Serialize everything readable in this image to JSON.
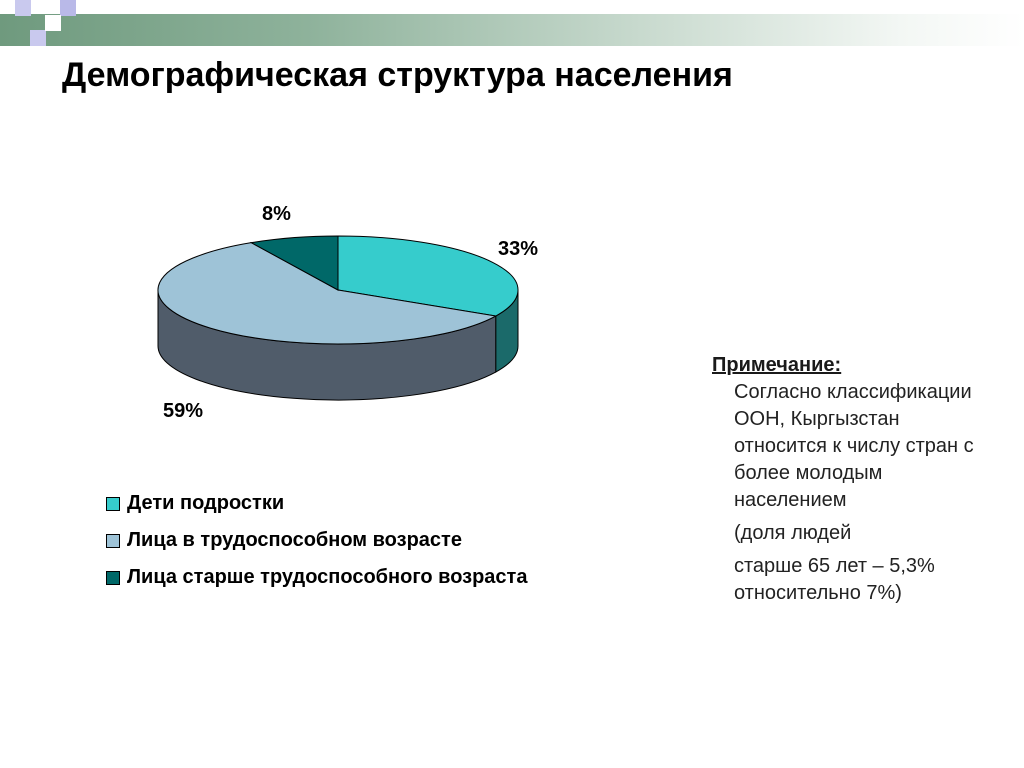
{
  "title": "Демографическая структура населения",
  "decor": {
    "colors": [
      "#6f9a7e",
      "#c9c9ee",
      "#b9b9e8"
    ]
  },
  "chart_data": {
    "type": "pie",
    "style": "3d-exploded-none",
    "title": "",
    "legend_position": "bottom-left",
    "categories": [
      "Дети подростки",
      "Лица в трудоспособном возрасте",
      "Лица старше трудоспособного возраста"
    ],
    "values": [
      33,
      59,
      8
    ],
    "data_labels": [
      "33%",
      "59%",
      "8%"
    ],
    "colors": [
      "#36cccc",
      "#9ec3d7",
      "#006868"
    ],
    "side_colors": [
      "#1b6a6a",
      "#505c6a",
      "#004848"
    ]
  },
  "note": {
    "heading": "Примечание:",
    "lines": [
      "Согласно классификации",
      "ООН, Кыргызстан",
      "относится к числу стран с",
      "более молодым",
      "населением",
      "(доля людей",
      "старше 65 лет – 5,3%",
      "относительно 7%)"
    ]
  }
}
